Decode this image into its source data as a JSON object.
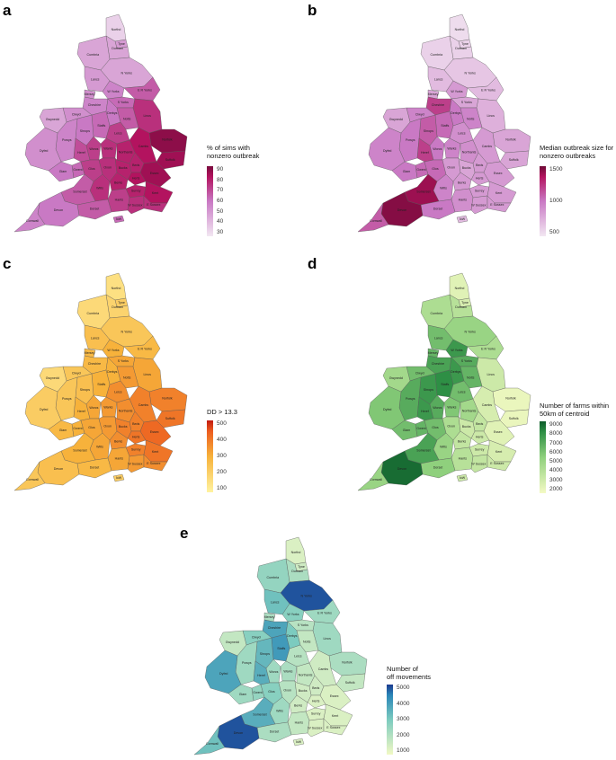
{
  "panels": [
    {
      "letter": "a",
      "legend_title": "% of sims with\nnonzero outbreak",
      "ticks": [
        "90",
        "80",
        "70",
        "60",
        "50",
        "40",
        "30"
      ],
      "colors": {
        "low": "#f2e7f2",
        "mid": "#c979c4",
        "high": "#b3135f",
        "top": "#7a0b3e"
      }
    },
    {
      "letter": "b",
      "legend_title": "Median outbreak size for\nnonzero outbreaks",
      "ticks": [
        "1500",
        "1000",
        "500"
      ],
      "colors": {
        "low": "#f2e7f2",
        "mid": "#c979c4",
        "high": "#b3135f",
        "top": "#6e0a36"
      }
    },
    {
      "letter": "c",
      "legend_title": "DD > 13.3",
      "ticks": [
        "500",
        "400",
        "300",
        "200",
        "100"
      ],
      "colors": {
        "low": "#fff3a0",
        "mid": "#f7b23b",
        "high": "#ec5d1f",
        "top": "#c21a10"
      }
    },
    {
      "letter": "d",
      "legend_title": "Number of farms within\n50km of centroid",
      "ticks": [
        "9000",
        "8000",
        "7000",
        "6000",
        "5000",
        "4000",
        "3000",
        "2000"
      ],
      "colors": {
        "low": "#f4fac4",
        "mid": "#8fd07d",
        "high": "#2e8f45",
        "top": "#0d5a2a"
      }
    },
    {
      "letter": "e",
      "legend_title": "Number of\noff movements",
      "ticks": [
        "5000",
        "4000",
        "3000",
        "2000",
        "1000"
      ],
      "colors": {
        "low": "#f2f9c4",
        "mid": "#7ccbbf",
        "high": "#2a86b8",
        "top": "#1b3a8f"
      }
    }
  ],
  "counties": [
    "Northd",
    "Tyne",
    "Durham",
    "Cumbria",
    "N Yorks",
    "Lancs",
    "Mersey",
    "W Yorks",
    "E R Yorks",
    "S Yorks",
    "Lincs",
    "Cheshire",
    "Derbys",
    "Notts",
    "Staffs",
    "Leics",
    "Norfolk",
    "Suffolk",
    "Cambs",
    "Shrops",
    "Clwyd",
    "Gwynedd",
    "Powys",
    "Dyfed",
    "Glam",
    "Gwent",
    "Heref",
    "Worcs",
    "Warks",
    "Northants",
    "Beds",
    "Herts",
    "Essex",
    "Glos",
    "Oxon",
    "Bucks",
    "Wilts",
    "Berks",
    "Surrey",
    "Kent",
    "Hants",
    "W Sussex",
    "E Sussex",
    "Somerset",
    "Dorset",
    "Devon",
    "Cornwall",
    "IoW"
  ],
  "values": {
    "a": [
      0.1,
      0.35,
      0.3,
      0.3,
      0.3,
      0.35,
      0.4,
      0.45,
      0.6,
      0.55,
      0.75,
      0.45,
      0.5,
      0.6,
      0.55,
      0.7,
      0.95,
      0.9,
      0.85,
      0.5,
      0.4,
      0.3,
      0.45,
      0.4,
      0.5,
      0.55,
      0.65,
      0.7,
      0.75,
      0.8,
      0.8,
      0.85,
      0.9,
      0.7,
      0.75,
      0.8,
      0.75,
      0.8,
      0.8,
      0.85,
      0.7,
      0.75,
      0.75,
      0.6,
      0.6,
      0.5,
      0.45,
      0.55
    ],
    "b": [
      0.05,
      0.1,
      0.1,
      0.1,
      0.15,
      0.2,
      0.3,
      0.35,
      0.2,
      0.3,
      0.25,
      0.7,
      0.5,
      0.45,
      0.55,
      0.4,
      0.3,
      0.3,
      0.35,
      0.6,
      0.45,
      0.3,
      0.5,
      0.45,
      0.5,
      0.55,
      0.7,
      0.5,
      0.45,
      0.4,
      0.35,
      0.35,
      0.35,
      0.55,
      0.35,
      0.3,
      0.45,
      0.35,
      0.35,
      0.35,
      0.4,
      0.35,
      0.35,
      0.9,
      0.5,
      0.95,
      0.6,
      0.2
    ],
    "c": [
      0.15,
      0.3,
      0.25,
      0.2,
      0.35,
      0.4,
      0.45,
      0.5,
      0.45,
      0.55,
      0.55,
      0.45,
      0.5,
      0.6,
      0.5,
      0.65,
      0.7,
      0.75,
      0.7,
      0.4,
      0.35,
      0.2,
      0.35,
      0.3,
      0.45,
      0.5,
      0.5,
      0.55,
      0.6,
      0.65,
      0.7,
      0.75,
      0.8,
      0.55,
      0.6,
      0.7,
      0.55,
      0.65,
      0.7,
      0.75,
      0.55,
      0.6,
      0.65,
      0.5,
      0.45,
      0.4,
      0.35,
      0.3
    ],
    "d": [
      0.1,
      0.15,
      0.3,
      0.35,
      0.45,
      0.6,
      0.65,
      0.8,
      0.35,
      0.7,
      0.2,
      0.75,
      0.8,
      0.65,
      0.85,
      0.6,
      0.05,
      0.05,
      0.15,
      0.8,
      0.6,
      0.4,
      0.7,
      0.55,
      0.6,
      0.65,
      0.8,
      0.7,
      0.55,
      0.4,
      0.25,
      0.2,
      0.1,
      0.6,
      0.35,
      0.2,
      0.45,
      0.25,
      0.2,
      0.15,
      0.3,
      0.25,
      0.2,
      0.75,
      0.5,
      0.95,
      0.45,
      0.2
    ],
    "e": [
      0.1,
      0.15,
      0.3,
      0.4,
      0.95,
      0.55,
      0.3,
      0.45,
      0.35,
      0.25,
      0.35,
      0.7,
      0.5,
      0.2,
      0.75,
      0.25,
      0.3,
      0.2,
      0.15,
      0.6,
      0.45,
      0.2,
      0.35,
      0.7,
      0.35,
      0.4,
      0.65,
      0.35,
      0.3,
      0.2,
      0.15,
      0.1,
      0.1,
      0.45,
      0.25,
      0.15,
      0.35,
      0.15,
      0.1,
      0.1,
      0.2,
      0.1,
      0.1,
      0.65,
      0.3,
      0.95,
      0.55,
      0.1
    ]
  }
}
